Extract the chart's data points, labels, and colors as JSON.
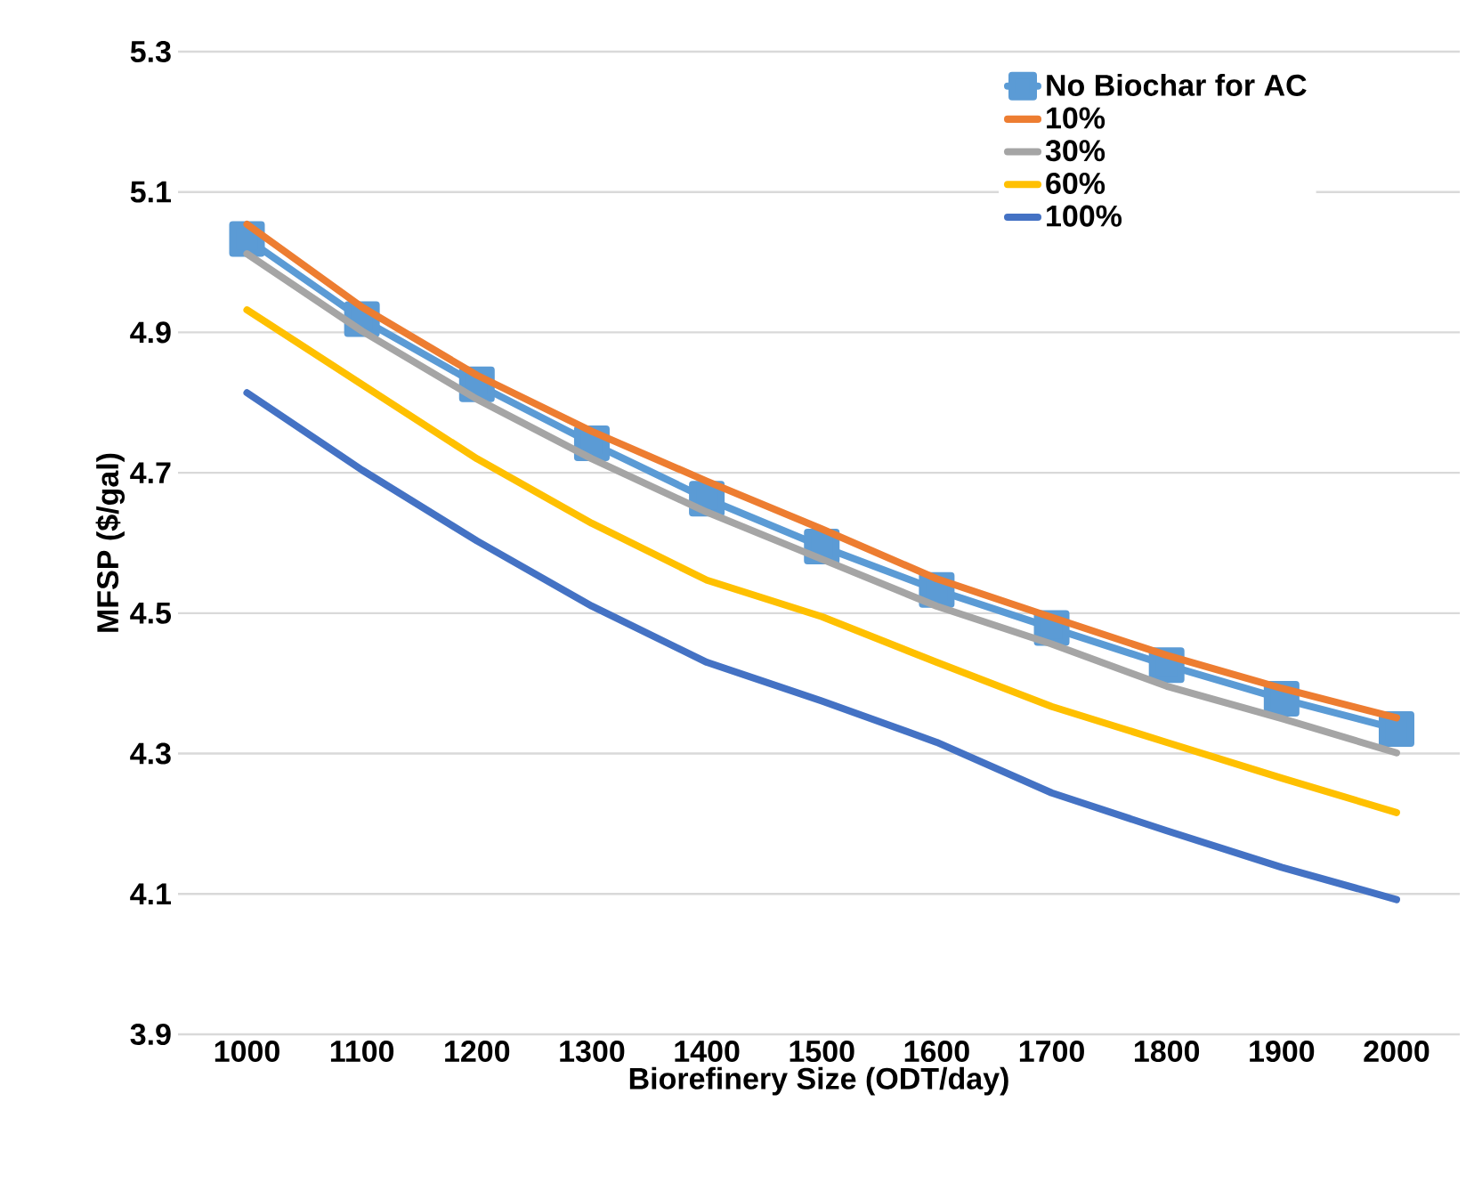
{
  "chart_data": {
    "type": "line",
    "xlabel": "Biorefinery Size (ODT/day)",
    "ylabel": "MFSP ($/gal)",
    "categories": [
      "1000",
      "1100",
      "1200",
      "1300",
      "1400",
      "1500",
      "1600",
      "1700",
      "1800",
      "1900",
      "2000"
    ],
    "ylim": [
      3.9,
      5.3
    ],
    "yticks": [
      3.9,
      4.1,
      4.3,
      4.5,
      4.7,
      4.9,
      5.1,
      5.3
    ],
    "grid": "y",
    "legend": "top right",
    "line_style": "solid",
    "series": [
      {
        "name": "No Biochar for AC",
        "color": "#5b9bd5",
        "marker": "square",
        "values": [
          5.033,
          4.919,
          4.826,
          4.742,
          4.663,
          4.595,
          4.533,
          4.479,
          4.426,
          4.378,
          4.335
        ]
      },
      {
        "name": "10%",
        "color": "#ed7d31",
        "marker": "none",
        "values": [
          5.054,
          4.936,
          4.839,
          4.759,
          4.688,
          4.62,
          4.549,
          4.494,
          4.44,
          4.393,
          4.351
        ]
      },
      {
        "name": "30%",
        "color": "#a5a5a5",
        "marker": "none",
        "values": [
          5.012,
          4.902,
          4.805,
          4.72,
          4.644,
          4.577,
          4.51,
          4.456,
          4.396,
          4.35,
          4.301
        ]
      },
      {
        "name": "60%",
        "color": "#ffc000",
        "marker": "none",
        "values": [
          4.932,
          4.826,
          4.72,
          4.628,
          4.547,
          4.495,
          4.43,
          4.367,
          4.316,
          4.265,
          4.216
        ]
      },
      {
        "name": "100%",
        "color": "#4472c4",
        "marker": "none",
        "values": [
          4.814,
          4.704,
          4.603,
          4.51,
          4.43,
          4.375,
          4.316,
          4.244,
          4.19,
          4.138,
          4.092
        ]
      }
    ]
  }
}
